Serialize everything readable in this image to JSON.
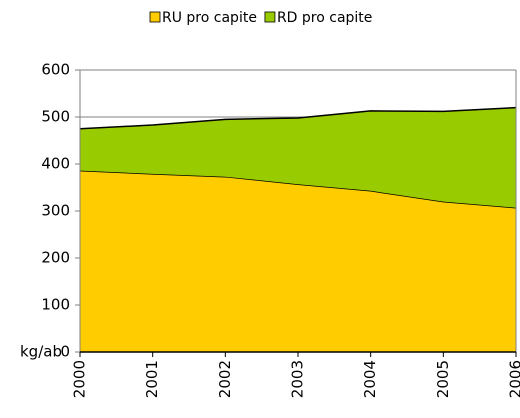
{
  "chart_data": {
    "type": "stacked_area",
    "y_label": "kg/ab",
    "categories": [
      "2000",
      "2001",
      "2002",
      "2003",
      "2004",
      "2005",
      "2006"
    ],
    "series": [
      {
        "name": "RU pro capite",
        "color": "#ffcc00",
        "values": [
          386,
          379,
          373,
          357,
          343,
          320,
          307
        ]
      },
      {
        "name": "RD pro capite",
        "color": "#99cc00",
        "values": [
          89,
          104,
          122,
          141,
          170,
          192,
          213
        ]
      }
    ],
    "ylim": [
      0,
      600
    ],
    "yticks": [
      0,
      100,
      200,
      300,
      400,
      500,
      600
    ],
    "grid": true,
    "legend": "top"
  }
}
